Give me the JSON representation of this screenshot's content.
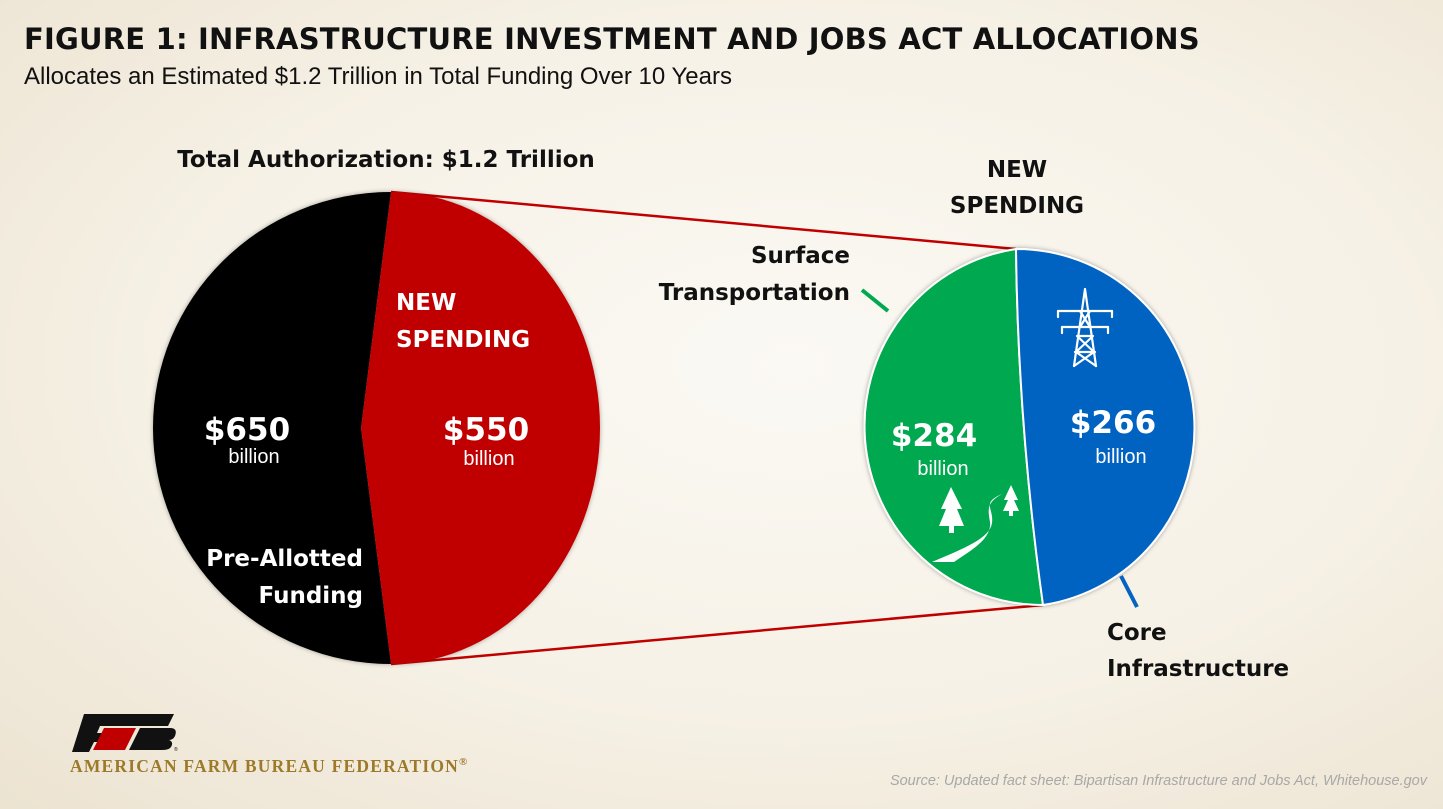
{
  "title": "FIGURE 1: INFRASTRUCTURE INVESTMENT AND JOBS ACT ALLOCATIONS",
  "subtitle": "Allocates an Estimated $1.2 Trillion in Total Funding Over 10 Years",
  "colors": {
    "pre_allotted": "#000000",
    "new_spending": "#c00000",
    "surface_transportation": "#00a84f",
    "core_infrastructure": "#0563c1",
    "connector": "#c00000"
  },
  "chart_data": [
    {
      "type": "pie",
      "title": "Total Authorization: $1.2 Trillion",
      "unit": "billion",
      "slices": [
        {
          "name_lines": [
            "Pre-Allotted",
            "Funding"
          ],
          "value": 650,
          "value_label": "$650",
          "unit_label": "billion",
          "color": "#000000"
        },
        {
          "name_lines": [
            "NEW",
            "SPENDING"
          ],
          "value": 550,
          "value_label": "$550",
          "unit_label": "billion",
          "color": "#c00000"
        }
      ]
    },
    {
      "type": "pie",
      "title_lines": [
        "NEW",
        "SPENDING"
      ],
      "unit": "billion",
      "slices": [
        {
          "name_lines": [
            "Surface",
            "Transportation"
          ],
          "value": 284,
          "value_label": "$284",
          "unit_label": "billion",
          "color": "#00a84f",
          "icon": "road-trees-icon"
        },
        {
          "name_lines": [
            "Core",
            "Infrastructure"
          ],
          "value": 266,
          "value_label": "$266",
          "unit_label": "billion",
          "color": "#0563c1",
          "icon": "power-tower-icon"
        }
      ]
    }
  ],
  "logo": {
    "name": "AMERICAN FARM BUREAU FEDERATION",
    "registered_mark": "®",
    "icon": "afbf-logo-icon"
  },
  "source": "Source: Updated fact sheet: Bipartisan Infrastructure and Jobs Act, Whitehouse.gov"
}
